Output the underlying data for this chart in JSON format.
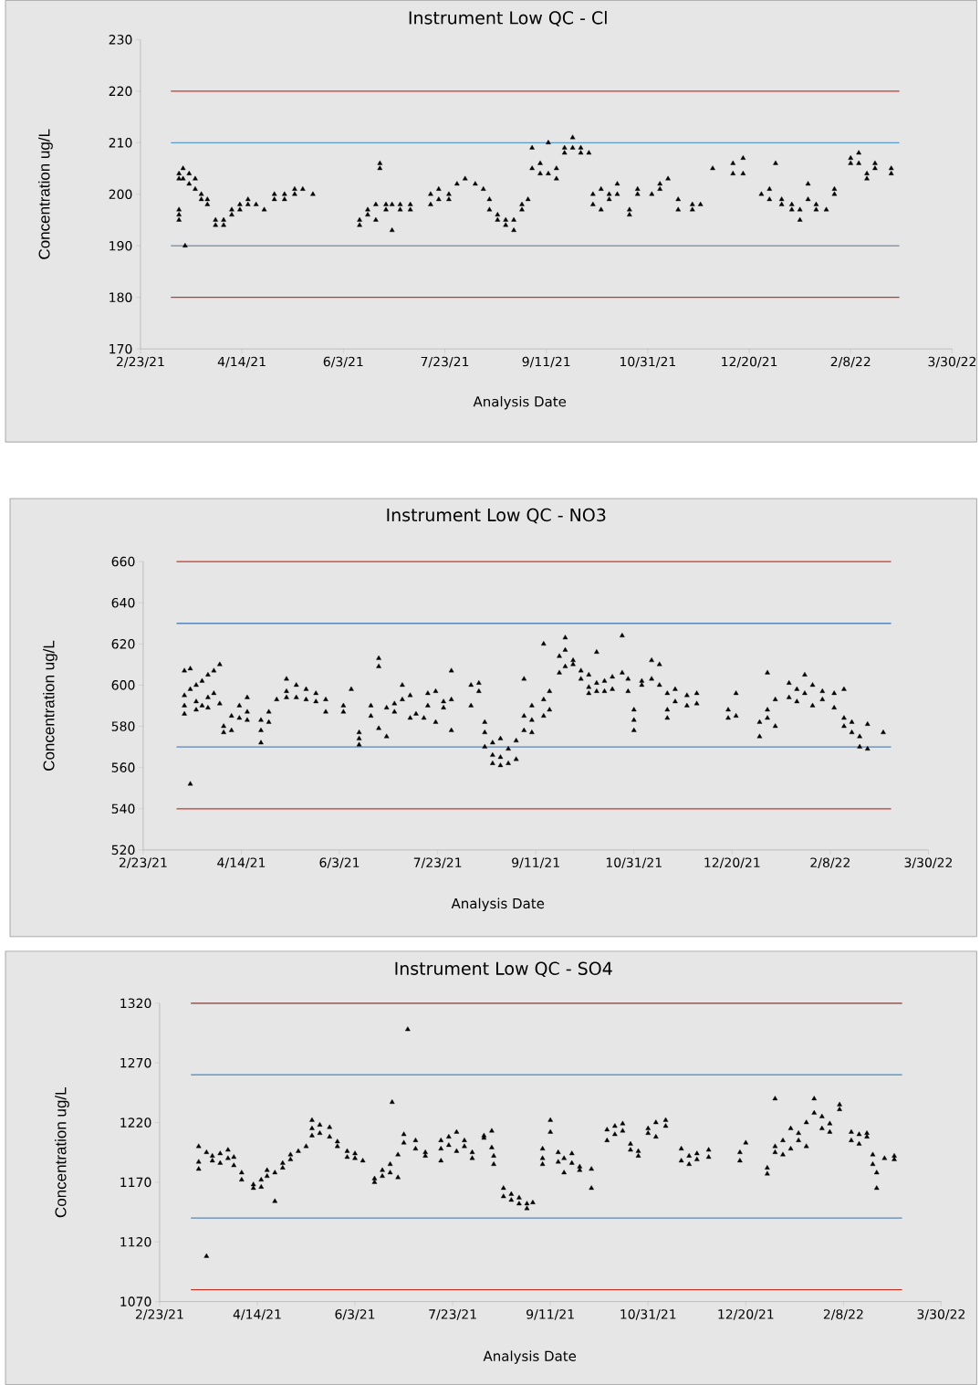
{
  "chart_data": [
    {
      "type": "scatter",
      "title": "Instrument Low QC - Cl",
      "xlabel": "Analysis Date",
      "ylabel": "Concentration ug/L",
      "marker": "triangle",
      "grid": false,
      "xlim": [
        "2021-02-23",
        "2022-03-30"
      ],
      "xticks": [
        {
          "value": "2021-02-23",
          "label": "2/23/21"
        },
        {
          "value": "2021-04-14",
          "label": "4/14/21"
        },
        {
          "value": "2021-06-03",
          "label": "6/3/21"
        },
        {
          "value": "2021-07-23",
          "label": "7/23/21"
        },
        {
          "value": "2021-09-11",
          "label": "9/11/21"
        },
        {
          "value": "2021-10-31",
          "label": "10/31/21"
        },
        {
          "value": "2021-12-20",
          "label": "12/20/21"
        },
        {
          "value": "2022-02-08",
          "label": "2/8/22"
        },
        {
          "value": "2022-03-30",
          "label": "3/30/22"
        }
      ],
      "ylim": [
        170,
        230
      ],
      "yticks": [
        170,
        180,
        190,
        200,
        210,
        220,
        230
      ],
      "ref_lines": [
        {
          "axis": "y",
          "value": 220,
          "color": "#c0392b"
        },
        {
          "axis": "y",
          "value": 210,
          "color": "#5b9bd5"
        },
        {
          "axis": "y",
          "value": 190,
          "color": "#8a96a8"
        },
        {
          "axis": "y",
          "value": 180,
          "color": "#c0392b"
        }
      ],
      "series": [
        {
          "color": "#000000",
          "x": [
            "2021-03-14",
            "2021-03-14",
            "2021-03-14",
            "2021-03-14",
            "2021-03-14",
            "2021-03-16",
            "2021-03-16",
            "2021-03-17",
            "2021-03-19",
            "2021-03-19",
            "2021-03-22",
            "2021-03-22",
            "2021-03-25",
            "2021-03-25",
            "2021-03-28",
            "2021-03-28",
            "2021-04-01",
            "2021-04-01",
            "2021-04-05",
            "2021-04-05",
            "2021-04-09",
            "2021-04-09",
            "2021-04-13",
            "2021-04-13",
            "2021-04-17",
            "2021-04-17",
            "2021-04-21",
            "2021-04-25",
            "2021-04-30",
            "2021-04-30",
            "2021-05-05",
            "2021-05-05",
            "2021-05-10",
            "2021-05-10",
            "2021-05-14",
            "2021-05-19",
            "2021-06-11",
            "2021-06-11",
            "2021-06-15",
            "2021-06-15",
            "2021-06-19",
            "2021-06-19",
            "2021-06-21",
            "2021-06-21",
            "2021-06-24",
            "2021-06-24",
            "2021-06-27",
            "2021-06-27",
            "2021-07-01",
            "2021-07-01",
            "2021-07-06",
            "2021-07-06",
            "2021-07-16",
            "2021-07-16",
            "2021-07-20",
            "2021-07-20",
            "2021-07-25",
            "2021-07-25",
            "2021-07-29",
            "2021-08-02",
            "2021-08-07",
            "2021-08-11",
            "2021-08-14",
            "2021-08-14",
            "2021-08-18",
            "2021-08-18",
            "2021-08-22",
            "2021-08-22",
            "2021-08-26",
            "2021-08-26",
            "2021-08-30",
            "2021-08-30",
            "2021-09-02",
            "2021-09-04",
            "2021-09-04",
            "2021-09-08",
            "2021-09-08",
            "2021-09-12",
            "2021-09-12",
            "2021-09-16",
            "2021-09-16",
            "2021-09-20",
            "2021-09-20",
            "2021-09-24",
            "2021-09-24",
            "2021-09-28",
            "2021-09-28",
            "2021-10-02",
            "2021-10-04",
            "2021-10-04",
            "2021-10-08",
            "2021-10-08",
            "2021-10-12",
            "2021-10-12",
            "2021-10-16",
            "2021-10-16",
            "2021-10-22",
            "2021-10-22",
            "2021-10-26",
            "2021-10-26",
            "2021-11-02",
            "2021-11-06",
            "2021-11-06",
            "2021-11-10",
            "2021-11-15",
            "2021-11-15",
            "2021-11-22",
            "2021-11-22",
            "2021-11-26",
            "2021-12-02",
            "2021-12-12",
            "2021-12-12",
            "2021-12-17",
            "2021-12-17",
            "2021-12-26",
            "2021-12-30",
            "2021-12-30",
            "2022-01-02",
            "2022-01-05",
            "2022-01-05",
            "2022-01-10",
            "2022-01-10",
            "2022-01-14",
            "2022-01-14",
            "2022-01-18",
            "2022-01-18",
            "2022-01-22",
            "2022-01-22",
            "2022-01-27",
            "2022-01-31",
            "2022-01-31",
            "2022-02-08",
            "2022-02-08",
            "2022-02-12",
            "2022-02-12",
            "2022-02-16",
            "2022-02-16",
            "2022-02-20",
            "2022-02-20",
            "2022-02-28",
            "2022-02-28"
          ],
          "values": [
            204,
            203,
            196,
            195,
            197,
            205,
            203,
            190,
            204,
            202,
            203,
            201,
            200,
            199,
            198,
            199,
            195,
            194,
            195,
            194,
            196,
            197,
            198,
            197,
            199,
            198,
            198,
            197,
            200,
            199,
            199,
            200,
            201,
            200,
            201,
            200,
            194,
            195,
            196,
            197,
            198,
            195,
            206,
            205,
            198,
            197,
            193,
            198,
            198,
            197,
            197,
            198,
            200,
            198,
            201,
            199,
            199,
            200,
            202,
            203,
            202,
            201,
            199,
            197,
            195,
            196,
            195,
            194,
            193,
            195,
            197,
            198,
            199,
            205,
            209,
            206,
            204,
            210,
            204,
            205,
            203,
            208,
            209,
            211,
            209,
            208,
            209,
            208,
            200,
            198,
            201,
            197,
            200,
            199,
            200,
            202,
            197,
            196,
            201,
            200,
            200,
            201,
            202,
            203,
            199,
            197,
            197,
            198,
            198,
            205,
            204,
            206,
            207,
            204,
            200,
            201,
            199,
            206,
            199,
            198,
            198,
            197,
            195,
            197,
            199,
            202,
            198,
            197,
            197,
            201,
            200,
            207,
            206,
            208,
            206,
            204,
            203,
            205,
            206,
            205,
            204
          ]
        }
      ]
    },
    {
      "type": "scatter",
      "title": "Instrument Low QC - NO3",
      "xlabel": "Analysis Date",
      "ylabel": "Concentration ug/L",
      "marker": "triangle",
      "grid": false,
      "xlim": [
        "2021-02-23",
        "2022-03-30"
      ],
      "xticks": [
        {
          "value": "2021-02-23",
          "label": "2/23/21"
        },
        {
          "value": "2021-04-14",
          "label": "4/14/21"
        },
        {
          "value": "2021-06-03",
          "label": "6/3/21"
        },
        {
          "value": "2021-07-23",
          "label": "7/23/21"
        },
        {
          "value": "2021-09-11",
          "label": "9/11/21"
        },
        {
          "value": "2021-10-31",
          "label": "10/31/21"
        },
        {
          "value": "2021-12-20",
          "label": "12/20/21"
        },
        {
          "value": "2022-02-08",
          "label": "2/8/22"
        },
        {
          "value": "2022-03-30",
          "label": "3/30/22"
        }
      ],
      "ylim": [
        520,
        660
      ],
      "yticks": [
        520,
        540,
        560,
        580,
        600,
        620,
        640,
        660
      ],
      "ref_lines": [
        {
          "axis": "y",
          "value": 660,
          "color": "#c0392b"
        },
        {
          "axis": "y",
          "value": 630,
          "color": "#5b86b5"
        },
        {
          "axis": "y",
          "value": 570,
          "color": "#5b86b5"
        },
        {
          "axis": "y",
          "value": 540,
          "color": "#c0392b"
        }
      ],
      "series": [
        {
          "color": "#000000",
          "x": [
            "2021-03-16",
            "2021-03-16",
            "2021-03-16",
            "2021-03-16",
            "2021-03-19",
            "2021-03-19",
            "2021-03-19",
            "2021-03-22",
            "2021-03-22",
            "2021-03-22",
            "2021-03-25",
            "2021-03-25",
            "2021-03-28",
            "2021-03-28",
            "2021-03-28",
            "2021-03-31",
            "2021-03-31",
            "2021-04-03",
            "2021-04-03",
            "2021-04-05",
            "2021-04-05",
            "2021-04-09",
            "2021-04-09",
            "2021-04-13",
            "2021-04-13",
            "2021-04-17",
            "2021-04-17",
            "2021-04-17",
            "2021-04-24",
            "2021-04-24",
            "2021-04-24",
            "2021-04-28",
            "2021-04-28",
            "2021-05-02",
            "2021-05-07",
            "2021-05-07",
            "2021-05-07",
            "2021-05-12",
            "2021-05-12",
            "2021-05-17",
            "2021-05-17",
            "2021-05-22",
            "2021-05-22",
            "2021-05-27",
            "2021-05-27",
            "2021-06-05",
            "2021-06-05",
            "2021-06-09",
            "2021-06-13",
            "2021-06-13",
            "2021-06-13",
            "2021-06-19",
            "2021-06-19",
            "2021-06-23",
            "2021-06-23",
            "2021-06-23",
            "2021-06-27",
            "2021-06-27",
            "2021-07-01",
            "2021-07-01",
            "2021-07-05",
            "2021-07-05",
            "2021-07-09",
            "2021-07-09",
            "2021-07-12",
            "2021-07-16",
            "2021-07-18",
            "2021-07-18",
            "2021-07-22",
            "2021-07-22",
            "2021-07-26",
            "2021-07-26",
            "2021-07-30",
            "2021-07-30",
            "2021-07-30",
            "2021-08-09",
            "2021-08-09",
            "2021-08-13",
            "2021-08-13",
            "2021-08-16",
            "2021-08-16",
            "2021-08-16",
            "2021-08-20",
            "2021-08-20",
            "2021-08-20",
            "2021-08-24",
            "2021-08-24",
            "2021-08-24",
            "2021-08-28",
            "2021-08-28",
            "2021-09-01",
            "2021-09-01",
            "2021-09-05",
            "2021-09-05",
            "2021-09-05",
            "2021-09-09",
            "2021-09-09",
            "2021-09-09",
            "2021-09-15",
            "2021-09-15",
            "2021-09-15",
            "2021-09-18",
            "2021-09-18",
            "2021-09-23",
            "2021-09-23",
            "2021-09-26",
            "2021-09-26",
            "2021-09-26",
            "2021-09-30",
            "2021-09-30",
            "2021-10-04",
            "2021-10-04",
            "2021-10-08",
            "2021-10-08",
            "2021-10-08",
            "2021-10-12",
            "2021-10-12",
            "2021-10-12",
            "2021-10-16",
            "2021-10-16",
            "2021-10-20",
            "2021-10-20",
            "2021-10-25",
            "2021-10-25",
            "2021-10-28",
            "2021-10-28",
            "2021-10-31",
            "2021-10-31",
            "2021-10-31",
            "2021-11-04",
            "2021-11-04",
            "2021-11-09",
            "2021-11-09",
            "2021-11-13",
            "2021-11-13",
            "2021-11-17",
            "2021-11-17",
            "2021-11-17",
            "2021-11-21",
            "2021-11-21",
            "2021-11-27",
            "2021-11-27",
            "2021-12-02",
            "2021-12-02",
            "2021-12-18",
            "2021-12-18",
            "2021-12-22",
            "2021-12-22",
            "2022-01-03",
            "2022-01-03",
            "2022-01-07",
            "2022-01-07",
            "2022-01-07",
            "2022-01-11",
            "2022-01-11",
            "2022-01-18",
            "2022-01-18",
            "2022-01-22",
            "2022-01-22",
            "2022-01-26",
            "2022-01-26",
            "2022-01-30",
            "2022-01-30",
            "2022-02-04",
            "2022-02-04",
            "2022-02-10",
            "2022-02-10",
            "2022-02-15",
            "2022-02-15",
            "2022-02-15",
            "2022-02-19",
            "2022-02-19",
            "2022-02-23",
            "2022-02-23",
            "2022-02-27",
            "2022-02-27",
            "2022-03-07"
          ],
          "values": [
            607,
            595,
            590,
            586,
            608,
            552,
            598,
            592,
            600,
            588,
            602,
            590,
            605,
            594,
            589,
            607,
            596,
            610,
            591,
            580,
            577,
            578,
            585,
            584,
            590,
            594,
            587,
            583,
            578,
            572,
            583,
            582,
            587,
            593,
            597,
            603,
            594,
            600,
            594,
            598,
            593,
            596,
            592,
            587,
            593,
            590,
            587,
            598,
            577,
            571,
            574,
            585,
            590,
            613,
            609,
            579,
            589,
            575,
            591,
            587,
            600,
            593,
            595,
            584,
            586,
            584,
            596,
            590,
            597,
            582,
            592,
            589,
            607,
            593,
            578,
            600,
            590,
            601,
            597,
            582,
            577,
            570,
            572,
            566,
            562,
            574,
            565,
            561,
            569,
            562,
            573,
            564,
            585,
            578,
            603,
            583,
            590,
            577,
            620,
            593,
            585,
            597,
            588,
            614,
            606,
            623,
            617,
            609,
            612,
            610,
            607,
            603,
            605,
            599,
            596,
            601,
            597,
            616,
            597,
            602,
            604,
            598,
            624,
            606,
            603,
            597,
            588,
            583,
            578,
            602,
            600,
            612,
            603,
            610,
            600,
            596,
            588,
            584,
            598,
            592,
            595,
            590,
            596,
            591,
            584,
            588,
            596,
            585,
            575,
            582,
            588,
            606,
            584,
            593,
            580,
            594,
            601,
            598,
            592,
            605,
            596,
            600,
            590,
            597,
            593,
            596,
            589,
            584,
            598,
            580,
            582,
            577,
            575,
            570,
            569,
            581,
            577
          ]
        }
      ]
    },
    {
      "type": "scatter",
      "title": "Instrument Low QC - SO4",
      "xlabel": "Analysis Date",
      "ylabel": "Concentration ug/L",
      "marker": "triangle",
      "grid": false,
      "xlim": [
        "2021-02-23",
        "2022-03-30"
      ],
      "xticks": [
        {
          "value": "2021-02-23",
          "label": "2/23/21"
        },
        {
          "value": "2021-04-14",
          "label": "4/14/21"
        },
        {
          "value": "2021-06-03",
          "label": "6/3/21"
        },
        {
          "value": "2021-07-23",
          "label": "7/23/21"
        },
        {
          "value": "2021-09-11",
          "label": "9/11/21"
        },
        {
          "value": "2021-10-31",
          "label": "10/31/21"
        },
        {
          "value": "2021-12-20",
          "label": "12/20/21"
        },
        {
          "value": "2022-02-08",
          "label": "2/8/22"
        },
        {
          "value": "2022-03-30",
          "label": "3/30/22"
        }
      ],
      "ylim": [
        1070,
        1320
      ],
      "yticks": [
        1070,
        1120,
        1170,
        1220,
        1270,
        1320
      ],
      "ref_lines": [
        {
          "axis": "y",
          "value": 1320,
          "color": "#7a3b3b"
        },
        {
          "axis": "y",
          "value": 1260,
          "color": "#5b9bd5"
        },
        {
          "axis": "y",
          "value": 1140,
          "color": "#5b86b5"
        },
        {
          "axis": "y",
          "value": 1080,
          "color": "#c0392b"
        }
      ],
      "series": [
        {
          "color": "#000000",
          "x": [
            "2021-03-15",
            "2021-03-15",
            "2021-03-15",
            "2021-03-19",
            "2021-03-19",
            "2021-03-22",
            "2021-03-22",
            "2021-03-26",
            "2021-03-26",
            "2021-03-30",
            "2021-03-30",
            "2021-04-02",
            "2021-04-02",
            "2021-04-06",
            "2021-04-06",
            "2021-04-12",
            "2021-04-12",
            "2021-04-16",
            "2021-04-16",
            "2021-04-19",
            "2021-04-19",
            "2021-04-23",
            "2021-04-23",
            "2021-04-27",
            "2021-04-27",
            "2021-05-01",
            "2021-05-01",
            "2021-05-05",
            "2021-05-09",
            "2021-05-12",
            "2021-05-12",
            "2021-05-12",
            "2021-05-16",
            "2021-05-16",
            "2021-05-21",
            "2021-05-21",
            "2021-05-25",
            "2021-05-25",
            "2021-05-30",
            "2021-05-30",
            "2021-06-03",
            "2021-06-03",
            "2021-06-07",
            "2021-06-13",
            "2021-06-13",
            "2021-06-17",
            "2021-06-17",
            "2021-06-21",
            "2021-06-21",
            "2021-06-22",
            "2021-06-25",
            "2021-06-25",
            "2021-06-28",
            "2021-06-28",
            "2021-06-30",
            "2021-07-04",
            "2021-07-04",
            "2021-07-09",
            "2021-07-09",
            "2021-07-17",
            "2021-07-17",
            "2021-07-17",
            "2021-07-21",
            "2021-07-21",
            "2021-07-25",
            "2021-07-25",
            "2021-07-29",
            "2021-07-29",
            "2021-08-02",
            "2021-08-02",
            "2021-08-08",
            "2021-08-08",
            "2021-08-12",
            "2021-08-12",
            "2021-08-13",
            "2021-08-13",
            "2021-08-18",
            "2021-08-18",
            "2021-08-22",
            "2021-08-22",
            "2021-08-26",
            "2021-08-26",
            "2021-08-30",
            "2021-08-30",
            "2021-09-02",
            "2021-09-07",
            "2021-09-07",
            "2021-09-07",
            "2021-09-11",
            "2021-09-11",
            "2021-09-15",
            "2021-09-15",
            "2021-09-18",
            "2021-09-18",
            "2021-09-22",
            "2021-09-22",
            "2021-09-26",
            "2021-09-26",
            "2021-10-02",
            "2021-10-02",
            "2021-10-10",
            "2021-10-10",
            "2021-10-14",
            "2021-10-14",
            "2021-10-18",
            "2021-10-18",
            "2021-10-22",
            "2021-10-22",
            "2021-10-26",
            "2021-10-26",
            "2021-10-31",
            "2021-10-31",
            "2021-11-04",
            "2021-11-04",
            "2021-11-09",
            "2021-11-09",
            "2021-11-17",
            "2021-11-17",
            "2021-11-21",
            "2021-11-21",
            "2021-11-25",
            "2021-11-25",
            "2021-12-01",
            "2021-12-01",
            "2021-12-17",
            "2021-12-17",
            "2021-12-20",
            "2021-12-31",
            "2021-12-31",
            "2022-01-04",
            "2022-01-04",
            "2022-01-04",
            "2022-01-08",
            "2022-01-08",
            "2022-01-12",
            "2022-01-12",
            "2022-01-16",
            "2022-01-16",
            "2022-01-20",
            "2022-01-20",
            "2022-01-24",
            "2022-01-24",
            "2022-01-28",
            "2022-01-28",
            "2022-02-01",
            "2022-02-01",
            "2022-02-06",
            "2022-02-06",
            "2022-02-12",
            "2022-02-12",
            "2022-02-16",
            "2022-02-16",
            "2022-02-20",
            "2022-02-20",
            "2022-02-23",
            "2022-02-23",
            "2022-02-25",
            "2022-02-25",
            "2022-03-01",
            "2022-03-06",
            "2022-03-06"
          ],
          "values": [
            1200,
            1187,
            1181,
            1108,
            1195,
            1192,
            1188,
            1194,
            1186,
            1197,
            1190,
            1191,
            1184,
            1178,
            1172,
            1168,
            1165,
            1172,
            1166,
            1175,
            1180,
            1178,
            1154,
            1186,
            1182,
            1193,
            1189,
            1196,
            1200,
            1215,
            1209,
            1222,
            1218,
            1211,
            1216,
            1208,
            1204,
            1200,
            1196,
            1191,
            1194,
            1190,
            1188,
            1173,
            1170,
            1180,
            1175,
            1185,
            1178,
            1237,
            1193,
            1174,
            1210,
            1203,
            1298,
            1205,
            1198,
            1195,
            1192,
            1205,
            1198,
            1188,
            1208,
            1201,
            1212,
            1196,
            1205,
            1200,
            1195,
            1190,
            1209,
            1207,
            1213,
            1199,
            1192,
            1185,
            1165,
            1158,
            1160,
            1155,
            1157,
            1152,
            1152,
            1148,
            1153,
            1190,
            1185,
            1198,
            1222,
            1212,
            1195,
            1187,
            1190,
            1178,
            1194,
            1186,
            1183,
            1180,
            1181,
            1165,
            1205,
            1214,
            1217,
            1210,
            1213,
            1219,
            1202,
            1197,
            1196,
            1192,
            1215,
            1211,
            1220,
            1208,
            1217,
            1222,
            1198,
            1188,
            1185,
            1192,
            1194,
            1189,
            1197,
            1191,
            1188,
            1195,
            1203,
            1177,
            1182,
            1200,
            1195,
            1240,
            1205,
            1193,
            1215,
            1198,
            1211,
            1205,
            1220,
            1200,
            1240,
            1228,
            1225,
            1215,
            1219,
            1212,
            1235,
            1231,
            1212,
            1205,
            1210,
            1202,
            1211,
            1208,
            1193,
            1185,
            1178,
            1165,
            1190,
            1192,
            1189
          ]
        }
      ]
    }
  ]
}
